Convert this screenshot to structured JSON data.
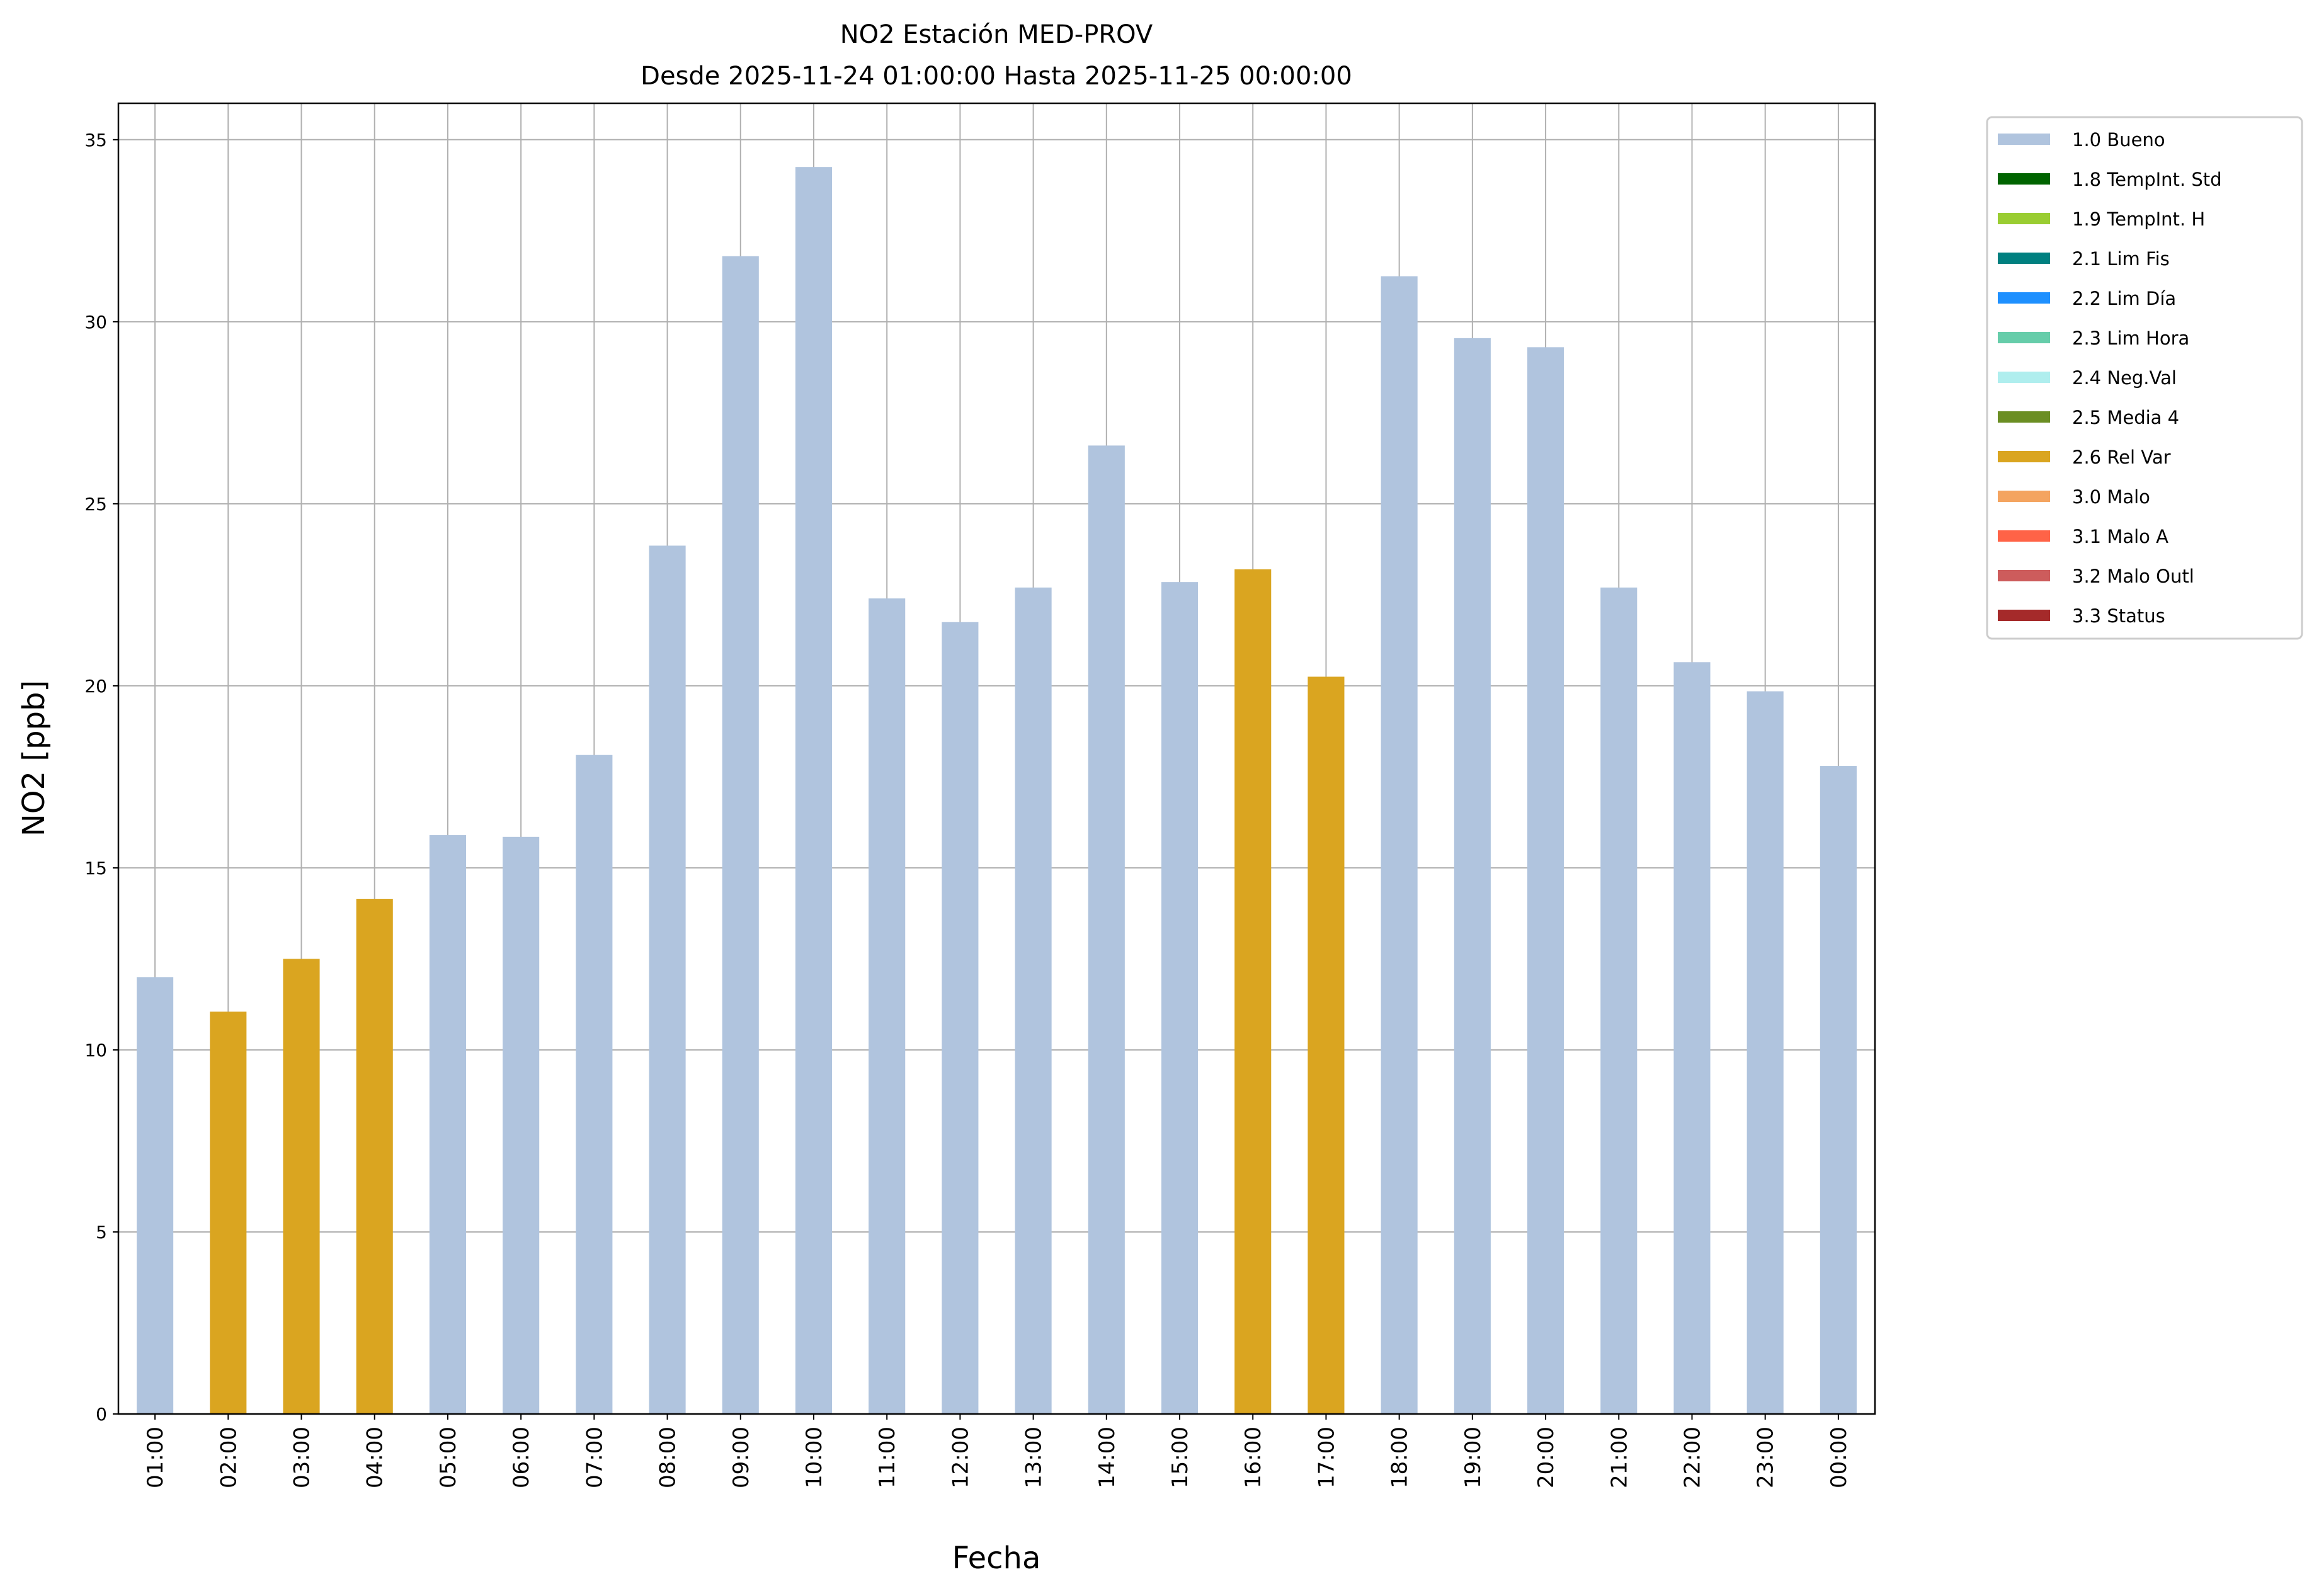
{
  "chart_data": {
    "type": "bar",
    "title": "NO2 Estación MED-PROV",
    "subtitle": "Desde 2025-11-24 01:00:00 Hasta 2025-11-25 00:00:00",
    "xlabel": "Fecha",
    "ylabel": "NO2 [ppb]",
    "ylim": [
      0,
      36
    ],
    "yticks": [
      0,
      5,
      10,
      15,
      20,
      25,
      30,
      35
    ],
    "grid": true,
    "legend_placement": "outside-top-right",
    "categories": [
      "01:00",
      "02:00",
      "03:00",
      "04:00",
      "05:00",
      "06:00",
      "07:00",
      "08:00",
      "09:00",
      "10:00",
      "11:00",
      "12:00",
      "13:00",
      "14:00",
      "15:00",
      "16:00",
      "17:00",
      "18:00",
      "19:00",
      "20:00",
      "21:00",
      "22:00",
      "23:00",
      "00:00"
    ],
    "values": [
      12.0,
      11.05,
      12.5,
      14.15,
      15.9,
      15.85,
      18.1,
      23.85,
      31.8,
      34.25,
      22.4,
      21.75,
      22.7,
      26.6,
      22.85,
      23.2,
      20.25,
      31.25,
      29.55,
      29.3,
      22.7,
      20.65,
      19.85,
      17.8
    ],
    "flags": [
      "1.0 Bueno",
      "2.6 Rel Var",
      "2.6 Rel Var",
      "2.6 Rel Var",
      "1.0 Bueno",
      "1.0 Bueno",
      "1.0 Bueno",
      "1.0 Bueno",
      "1.0 Bueno",
      "1.0 Bueno",
      "1.0 Bueno",
      "1.0 Bueno",
      "1.0 Bueno",
      "1.0 Bueno",
      "1.0 Bueno",
      "2.6 Rel Var",
      "2.6 Rel Var",
      "1.0 Bueno",
      "1.0 Bueno",
      "1.0 Bueno",
      "1.0 Bueno",
      "1.0 Bueno",
      "1.0 Bueno",
      "1.0 Bueno"
    ],
    "legend": [
      {
        "label": "1.0 Bueno",
        "color": "#B0C4DE"
      },
      {
        "label": "1.8 TempInt. Std",
        "color": "#006400"
      },
      {
        "label": "1.9 TempInt. H",
        "color": "#9ACD32"
      },
      {
        "label": "2.1 Lim Fis",
        "color": "#008080"
      },
      {
        "label": "2.2 Lim Día",
        "color": "#1E90FF"
      },
      {
        "label": "2.3 Lim Hora",
        "color": "#66CDAA"
      },
      {
        "label": "2.4 Neg.Val",
        "color": "#AFEEEE"
      },
      {
        "label": "2.5 Media 4",
        "color": "#6B8E23"
      },
      {
        "label": "2.6 Rel Var",
        "color": "#DAA520"
      },
      {
        "label": "3.0 Malo",
        "color": "#F4A460"
      },
      {
        "label": "3.1 Malo A",
        "color": "#FF6347"
      },
      {
        "label": "3.2 Malo Outl",
        "color": "#CD5C5C"
      },
      {
        "label": "3.3 Status",
        "color": "#A52A2A"
      }
    ]
  }
}
